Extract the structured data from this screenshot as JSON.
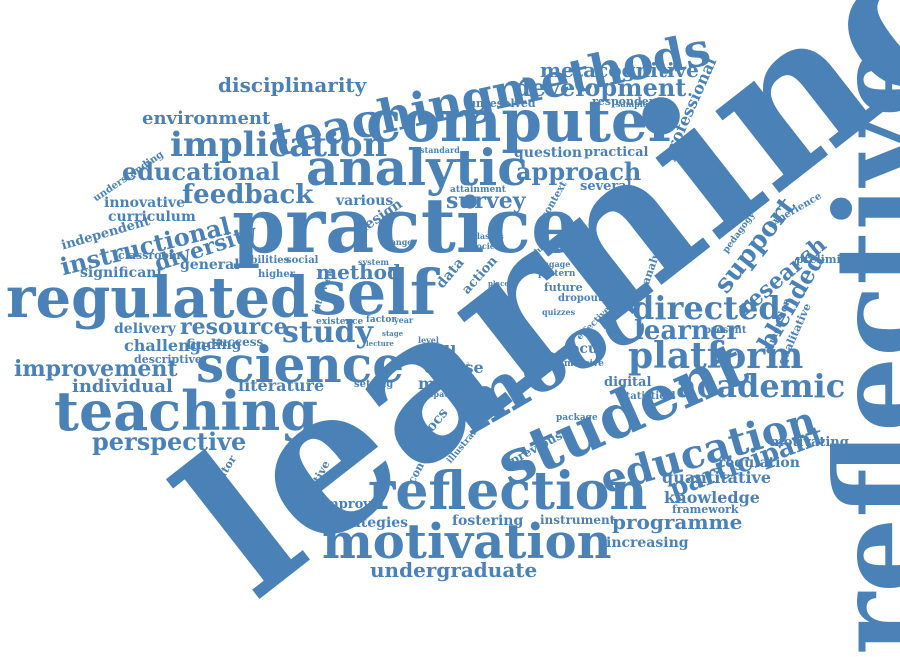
{
  "color": "#4a82b7",
  "words": [
    "reflective",
    "learning",
    "mooc",
    "student",
    "practice",
    "reflection",
    "motivation",
    "regulated",
    "self",
    "computer",
    "teachingmethods",
    "analytic",
    "science",
    "teaching",
    "education",
    "platform",
    "academic",
    "implication",
    "directed",
    "learner",
    "blended",
    "study",
    "participant",
    "support",
    "research",
    "feedback",
    "educational",
    "approach",
    "survey",
    "development",
    "metacognitive",
    "disciplinarity",
    "environment",
    "instructional",
    "diversity",
    "improvement",
    "perspective",
    "individual",
    "resource",
    "method",
    "programme",
    "knowledge",
    "quantitative",
    "regulation",
    "undergraduate",
    "strategies",
    "fostering",
    "increasing",
    "professional",
    "innovative",
    "curriculum",
    "independent",
    "significant",
    "classroom",
    "general",
    "delivery",
    "challenge",
    "finding",
    "success",
    "descriptive",
    "literature",
    "design",
    "various",
    "question",
    "practical",
    "several",
    "unresolved",
    "respondent",
    "moocs",
    "skill",
    "course",
    "major",
    "focus",
    "digital",
    "statistical",
    "motivating",
    "framework",
    "instrument",
    "improve",
    "educator",
    "objective",
    "content",
    "previous",
    "setting",
    "data",
    "action",
    "time",
    "goal",
    "inter",
    "result",
    "future",
    "dropout",
    "pattern",
    "analysis",
    "pedagogy",
    "experience",
    "preliminary",
    "dimension",
    "qualitative",
    "present",
    "module",
    "engage",
    "massive",
    "effective",
    "attainment",
    "classes",
    "society",
    "context",
    "standard",
    "understanding",
    "abilities",
    "social",
    "higher",
    "system",
    "interview",
    "existence",
    "factor",
    "year",
    "illustrate",
    "package",
    "sample",
    "quizzes",
    "impact",
    "level",
    "place",
    "change",
    "review",
    "lecture",
    "stage"
  ]
}
